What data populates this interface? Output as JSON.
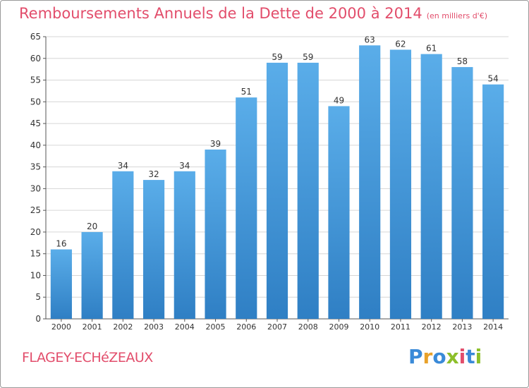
{
  "chart_data": {
    "type": "bar",
    "title": "Remboursements Annuels de la Dette de 2000 à 2014",
    "unit": "(en milliers d'€)",
    "categories": [
      "2000",
      "2001",
      "2002",
      "2003",
      "2004",
      "2005",
      "2006",
      "2007",
      "2008",
      "2009",
      "2010",
      "2011",
      "2012",
      "2013",
      "2014"
    ],
    "values": [
      16,
      20,
      34,
      32,
      34,
      39,
      51,
      59,
      59,
      49,
      63,
      62,
      61,
      58,
      54
    ],
    "ylim": [
      0,
      65
    ],
    "yticks": [
      0,
      5,
      10,
      15,
      20,
      25,
      30,
      35,
      40,
      45,
      50,
      55,
      60,
      65
    ],
    "grid": true,
    "bar_color": "#4a9de0"
  },
  "footer": {
    "place": "FLAGEY-ECHéZEAUX",
    "logo_letters": [
      {
        "ch": "P",
        "color": "#3a8ad8"
      },
      {
        "ch": "r",
        "color": "#e8a12a"
      },
      {
        "ch": "o",
        "color": "#3a8ad8"
      },
      {
        "ch": "x",
        "color": "#8dbf2a"
      },
      {
        "ch": "i",
        "color": "#e24d6b"
      },
      {
        "ch": "t",
        "color": "#3a8ad8"
      },
      {
        "ch": "i",
        "color": "#8dbf2a"
      }
    ]
  }
}
